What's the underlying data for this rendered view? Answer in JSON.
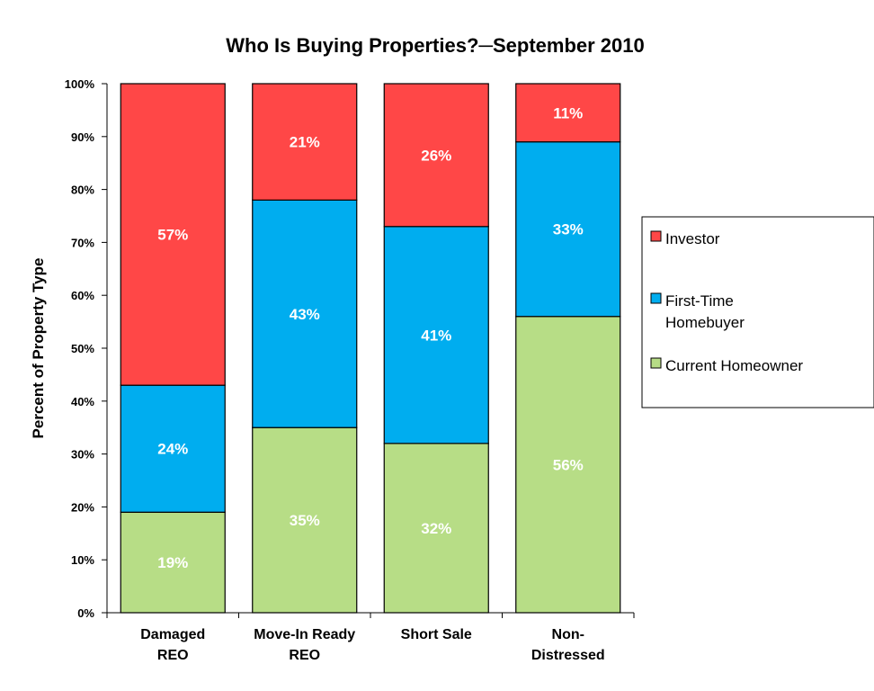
{
  "chart_data": {
    "type": "bar",
    "stacked": true,
    "title": "Who Is Buying Properties?─September 2010",
    "ylabel": "Percent  of Property Type",
    "xlabel": "",
    "ylim": [
      0,
      100
    ],
    "y_ticks": [
      "0%",
      "10%",
      "20%",
      "30%",
      "40%",
      "50%",
      "60%",
      "70%",
      "80%",
      "90%",
      "100%"
    ],
    "categories": [
      [
        "Damaged",
        "REO"
      ],
      [
        "Move-In Ready",
        "REO"
      ],
      [
        "Short Sale"
      ],
      [
        "Non-",
        "Distressed"
      ]
    ],
    "series": [
      {
        "name": "Current Homeowner",
        "color": "#b7dd86",
        "values": [
          19,
          35,
          32,
          56
        ],
        "labels": [
          "19%",
          "35%",
          "32%",
          "56%"
        ]
      },
      {
        "name": "First-Time Homebuyer",
        "color": "#00adef",
        "values": [
          24,
          43,
          41,
          33
        ],
        "labels": [
          "24%",
          "43%",
          "41%",
          "33%"
        ]
      },
      {
        "name": "Investor",
        "color": "#ff4747",
        "values": [
          57,
          21,
          26,
          11
        ],
        "labels": [
          "57%",
          "21%",
          "26%",
          "11%"
        ]
      }
    ],
    "legend": {
      "position": "right",
      "entries": [
        {
          "series": "Investor",
          "lines": [
            "Investor"
          ]
        },
        {
          "series": "First-Time Homebuyer",
          "lines": [
            "First-Time",
            "Homebuyer"
          ]
        },
        {
          "series": "Current Homeowner",
          "lines": [
            "Current Homeowner"
          ]
        }
      ]
    },
    "grid": false
  }
}
